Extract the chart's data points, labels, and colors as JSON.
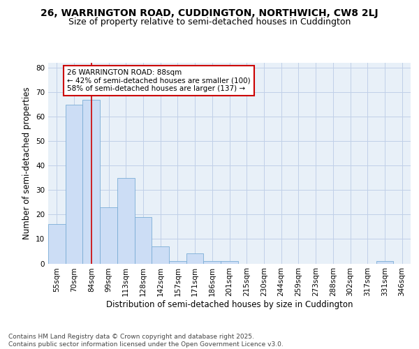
{
  "title1": "26, WARRINGTON ROAD, CUDDINGTON, NORTHWICH, CW8 2LJ",
  "title2": "Size of property relative to semi-detached houses in Cuddington",
  "xlabel": "Distribution of semi-detached houses by size in Cuddington",
  "ylabel": "Number of semi-detached properties",
  "categories": [
    "55sqm",
    "70sqm",
    "84sqm",
    "99sqm",
    "113sqm",
    "128sqm",
    "142sqm",
    "157sqm",
    "171sqm",
    "186sqm",
    "201sqm",
    "215sqm",
    "230sqm",
    "244sqm",
    "259sqm",
    "273sqm",
    "288sqm",
    "302sqm",
    "317sqm",
    "331sqm",
    "346sqm"
  ],
  "values": [
    16,
    65,
    67,
    23,
    35,
    19,
    7,
    1,
    4,
    1,
    1,
    0,
    0,
    0,
    0,
    0,
    0,
    0,
    0,
    1,
    0
  ],
  "bar_color": "#ccddf5",
  "bar_edge_color": "#7badd6",
  "vline_x": 2,
  "vline_color": "#cc0000",
  "annotation_text": "26 WARRINGTON ROAD: 88sqm\n← 42% of semi-detached houses are smaller (100)\n58% of semi-detached houses are larger (137) →",
  "annotation_box_color": "#ffffff",
  "annotation_box_edge": "#cc0000",
  "ylim": [
    0,
    82
  ],
  "yticks": [
    0,
    10,
    20,
    30,
    40,
    50,
    60,
    70,
    80
  ],
  "grid_color": "#c0d0e8",
  "background_color": "#e8f0f8",
  "footer": "Contains HM Land Registry data © Crown copyright and database right 2025.\nContains public sector information licensed under the Open Government Licence v3.0.",
  "title1_fontsize": 10,
  "title2_fontsize": 9,
  "xlabel_fontsize": 8.5,
  "ylabel_fontsize": 8.5,
  "tick_fontsize": 7.5,
  "footer_fontsize": 6.5,
  "annotation_fontsize": 7.5
}
